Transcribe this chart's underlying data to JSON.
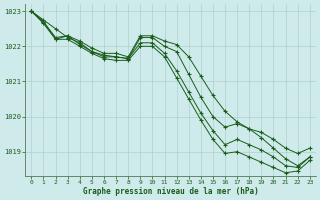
{
  "title": "Graphe pression niveau de la mer (hPa)",
  "background_color": "#ceeaea",
  "grid_color": "#b0d0d0",
  "line_color": "#1a5c1a",
  "marker_color": "#1a5c1a",
  "xlim": [
    -0.5,
    23.5
  ],
  "ylim": [
    1018.3,
    1023.2
  ],
  "yticks": [
    1019,
    1020,
    1021,
    1022,
    1023
  ],
  "xticks": [
    0,
    1,
    2,
    3,
    4,
    5,
    6,
    7,
    8,
    9,
    10,
    11,
    12,
    13,
    14,
    15,
    16,
    17,
    18,
    19,
    20,
    21,
    22,
    23
  ],
  "series": [
    [
      1023.0,
      1022.75,
      1022.5,
      1022.25,
      1022.1,
      1021.85,
      1021.75,
      1021.7,
      1021.65,
      1022.25,
      1022.25,
      1022.0,
      1021.85,
      1021.2,
      1020.55,
      1020.0,
      1019.7,
      1019.8,
      1019.65,
      1019.55,
      1019.35,
      1019.1,
      1018.95,
      1019.1
    ],
    [
      1023.0,
      1022.7,
      1022.2,
      1022.3,
      1022.05,
      1021.85,
      1021.7,
      1021.7,
      1021.65,
      1022.1,
      1022.1,
      1021.8,
      1021.3,
      1020.7,
      1020.1,
      1019.6,
      1019.2,
      1019.35,
      1019.2,
      1019.05,
      1018.85,
      1018.6,
      1018.55,
      1018.85
    ],
    [
      1023.0,
      1022.65,
      1022.2,
      1022.2,
      1022.0,
      1021.8,
      1021.65,
      1021.6,
      1021.6,
      1022.0,
      1022.0,
      1021.7,
      1021.1,
      1020.5,
      1019.9,
      1019.35,
      1018.95,
      1019.0,
      1018.85,
      1018.7,
      1018.55,
      1018.4,
      1018.45,
      1018.75
    ],
    [
      1023.0,
      1022.7,
      1022.25,
      1022.3,
      1022.15,
      1021.95,
      1021.8,
      1021.8,
      1021.7,
      1022.3,
      1022.3,
      1022.15,
      1022.05,
      1021.7,
      1021.15,
      1020.6,
      1020.15,
      1019.85,
      1019.65,
      1019.4,
      1019.1,
      1018.8,
      1018.6,
      1018.85
    ]
  ]
}
